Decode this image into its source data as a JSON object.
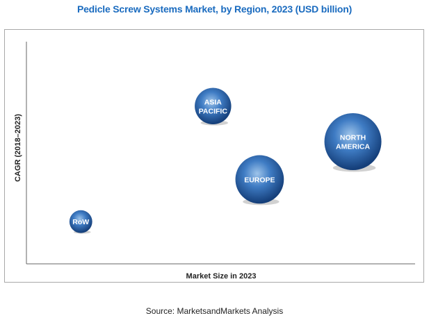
{
  "title": "Pedicle Screw Systems Market, by Region, 2023 (USD billion)",
  "source": "Source: MarketsandMarkets Analysis",
  "chart_data": {
    "type": "bubble",
    "title": "Pedicle Screw Systems Market, by Region, 2023 (USD billion)",
    "xlabel": "Market Size in 2023",
    "ylabel": "CAGR (2018–2023)",
    "xlim": [
      0,
      100
    ],
    "ylim": [
      0,
      100
    ],
    "grid": false,
    "axis_ticks_shown": false,
    "points": [
      {
        "name": "ASIA PACIFIC",
        "lines": [
          "ASIA",
          "PACIFIC"
        ],
        "x": 48,
        "y": 71,
        "size": 0.64
      },
      {
        "name": "NORTH AMERICA",
        "lines": [
          "NORTH",
          "AMERICA"
        ],
        "x": 84,
        "y": 55,
        "size": 1.0
      },
      {
        "name": "EUROPE",
        "lines": [
          "EUROPE"
        ],
        "x": 60,
        "y": 38,
        "size": 0.85
      },
      {
        "name": "RoW",
        "lines": [
          "RoW"
        ],
        "x": 14,
        "y": 19,
        "size": 0.4
      }
    ],
    "colors": {
      "bubble_light": "#9ec4ea",
      "bubble_mid": "#3f7cc4",
      "bubble_dark": "#153f7a",
      "axis": "#666666",
      "title": "#1a6bbf"
    }
  }
}
